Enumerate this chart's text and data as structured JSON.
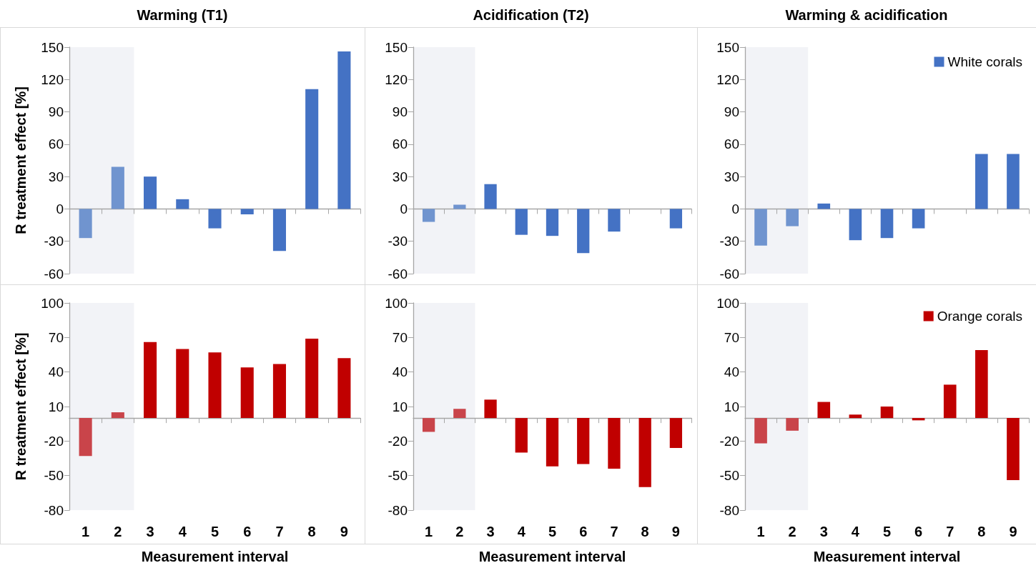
{
  "chart_data": [
    {
      "type": "bar",
      "title": "Warming (T1)",
      "ylabel": "R treatment effect [%]",
      "categories": [
        "1",
        "2",
        "3",
        "4",
        "5",
        "6",
        "7",
        "8",
        "9"
      ],
      "series": [
        {
          "colors": [
            "#7094cf",
            "#7094cf",
            "#4472c4",
            "#4472c4",
            "#4472c4",
            "#4472c4",
            "#4472c4",
            "#4472c4",
            "#4472c4"
          ],
          "values": [
            -27,
            39,
            30,
            9,
            -18,
            -5,
            -39,
            111,
            146
          ]
        }
      ],
      "ylim": [
        -60,
        150
      ],
      "yticks": [
        -60,
        -30,
        0,
        30,
        60,
        90,
        120,
        150
      ],
      "bands": [
        {
          "axis": "x",
          "from": "1",
          "to": "2",
          "color": "#f2f3f7"
        }
      ],
      "tick_labels": "y"
    },
    {
      "type": "bar",
      "title": "Acidification (T2)",
      "categories": [
        "1",
        "2",
        "3",
        "4",
        "5",
        "6",
        "7",
        "8",
        "9"
      ],
      "series": [
        {
          "colors": [
            "#7094cf",
            "#7094cf",
            "#4472c4",
            "#4472c4",
            "#4472c4",
            "#4472c4",
            "#4472c4",
            "#4472c4",
            "#4472c4"
          ],
          "values": [
            -12,
            4,
            23,
            -24,
            -25,
            -41,
            -21,
            0,
            -18
          ]
        }
      ],
      "ylim": [
        -60,
        150
      ],
      "yticks": [
        -60,
        -30,
        0,
        30,
        60,
        90,
        120,
        150
      ],
      "bands": [
        {
          "axis": "x",
          "from": "1",
          "to": "2",
          "color": "#f2f3f7"
        }
      ],
      "tick_labels": "y"
    },
    {
      "type": "bar",
      "title": "Warming & acidification",
      "categories": [
        "1",
        "2",
        "3",
        "4",
        "5",
        "6",
        "7",
        "8",
        "9"
      ],
      "series": [
        {
          "name": "White corals",
          "color": "#4472c4",
          "colors": [
            "#7094cf",
            "#7094cf",
            "#4472c4",
            "#4472c4",
            "#4472c4",
            "#4472c4",
            "#4472c4",
            "#4472c4",
            "#4472c4"
          ],
          "values": [
            -34,
            -16,
            5,
            -29,
            -27,
            -18,
            0,
            51,
            51
          ]
        }
      ],
      "ylim": [
        -60,
        150
      ],
      "yticks": [
        -60,
        -30,
        0,
        30,
        60,
        90,
        120,
        150
      ],
      "bands": [
        {
          "axis": "x",
          "from": "1",
          "to": "2",
          "color": "#f2f3f7"
        }
      ],
      "tick_labels": "y",
      "legend": "top right"
    },
    {
      "type": "bar",
      "xlabel": "Measurement interval",
      "ylabel": "R treatment effect [%]",
      "categories": [
        "1",
        "2",
        "3",
        "4",
        "5",
        "6",
        "7",
        "8",
        "9"
      ],
      "series": [
        {
          "colors": [
            "#c9444a",
            "#c9444a",
            "#c00000",
            "#c00000",
            "#c00000",
            "#c00000",
            "#c00000",
            "#c00000",
            "#c00000"
          ],
          "values": [
            -33,
            5,
            66,
            60,
            57,
            44,
            47,
            69,
            52
          ]
        }
      ],
      "ylim": [
        -80,
        100
      ],
      "yticks": [
        -80,
        -50,
        -20,
        10,
        40,
        70,
        100
      ],
      "bands": [
        {
          "axis": "x",
          "from": "1",
          "to": "2",
          "color": "#f2f3f7"
        }
      ]
    },
    {
      "type": "bar",
      "xlabel": "Measurement interval",
      "categories": [
        "1",
        "2",
        "3",
        "4",
        "5",
        "6",
        "7",
        "8",
        "9"
      ],
      "series": [
        {
          "colors": [
            "#c9444a",
            "#c9444a",
            "#c00000",
            "#c00000",
            "#c00000",
            "#c00000",
            "#c00000",
            "#c00000",
            "#c00000"
          ],
          "values": [
            -12,
            8,
            16,
            -30,
            -42,
            -40,
            -44,
            -60,
            -26
          ]
        }
      ],
      "ylim": [
        -80,
        100
      ],
      "yticks": [
        -80,
        -50,
        -20,
        10,
        40,
        70,
        100
      ],
      "bands": [
        {
          "axis": "x",
          "from": "1",
          "to": "2",
          "color": "#f2f3f7"
        }
      ]
    },
    {
      "type": "bar",
      "xlabel": "Measurement interval",
      "categories": [
        "1",
        "2",
        "3",
        "4",
        "5",
        "6",
        "7",
        "8",
        "9"
      ],
      "series": [
        {
          "name": "Orange corals",
          "color": "#c00000",
          "colors": [
            "#c9444a",
            "#c9444a",
            "#c00000",
            "#c00000",
            "#c00000",
            "#c00000",
            "#c00000",
            "#c00000",
            "#c00000"
          ],
          "values": [
            -22,
            -11,
            14,
            3,
            10,
            -2,
            29,
            59,
            -54
          ]
        }
      ],
      "ylim": [
        -80,
        100
      ],
      "yticks": [
        -80,
        -50,
        -20,
        10,
        40,
        70,
        100
      ],
      "bands": [
        {
          "axis": "x",
          "from": "1",
          "to": "2",
          "color": "#f2f3f7"
        }
      ],
      "legend": "top right"
    }
  ]
}
